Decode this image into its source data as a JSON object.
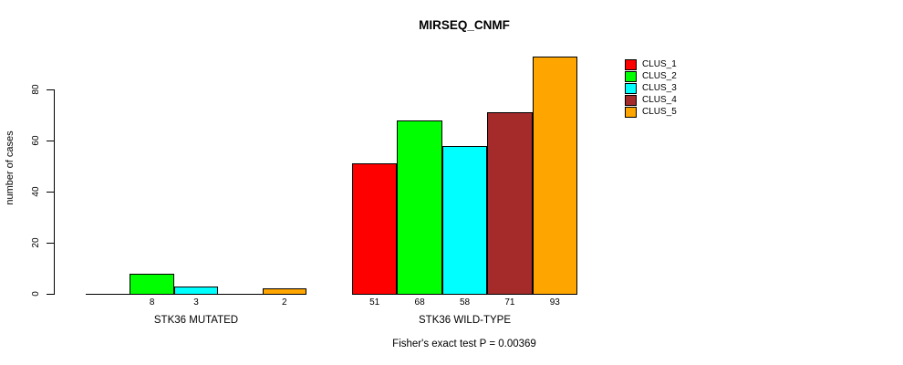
{
  "chart_data": {
    "type": "bar",
    "title": "MIRSEQ_CNMF",
    "ylabel": "number of cases",
    "xlabel": "",
    "yticks": [
      0,
      20,
      40,
      60,
      80
    ],
    "ylim": [
      0,
      95
    ],
    "grid": false,
    "legend_position": "top-right",
    "border_color": "#000000",
    "text_color": "#000000",
    "series": [
      {
        "name": "CLUS_1",
        "color": "#FF0000"
      },
      {
        "name": "CLUS_2",
        "color": "#00FF00"
      },
      {
        "name": "CLUS_3",
        "color": "#00FFFF"
      },
      {
        "name": "CLUS_4",
        "color": "#A52A2A"
      },
      {
        "name": "CLUS_5",
        "color": "#FFA500"
      }
    ],
    "groups": [
      {
        "label": "STK36 MUTATED",
        "values": [
          0,
          8,
          3,
          0,
          2
        ],
        "bar_labels": [
          "",
          "8",
          "3",
          "",
          "2"
        ]
      },
      {
        "label": "STK36 WILD-TYPE",
        "values": [
          51,
          68,
          58,
          71,
          93
        ],
        "bar_labels": [
          "51",
          "68",
          "58",
          "71",
          "93"
        ]
      }
    ],
    "annotation": "Fisher's exact test P = 0.00369"
  }
}
